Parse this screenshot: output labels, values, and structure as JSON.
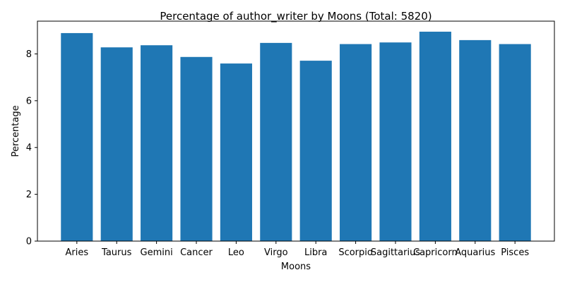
{
  "chart_data": {
    "type": "bar",
    "title": "Percentage of author_writer by Moons (Total: 5820)",
    "xlabel": "Moons",
    "ylabel": "Percentage",
    "categories": [
      "Aries",
      "Taurus",
      "Gemini",
      "Cancer",
      "Leo",
      "Virgo",
      "Libra",
      "Scorpio",
      "Sagittarius",
      "Capricorn",
      "Aquarius",
      "Pisces"
    ],
    "values": [
      8.89,
      8.28,
      8.37,
      7.87,
      7.59,
      8.47,
      7.71,
      8.42,
      8.49,
      8.95,
      8.59,
      8.42
    ],
    "ylim": [
      0,
      9.4
    ],
    "yticks": [
      0,
      2,
      4,
      6,
      8
    ],
    "grid": false,
    "bar_color": "#1f77b4"
  }
}
